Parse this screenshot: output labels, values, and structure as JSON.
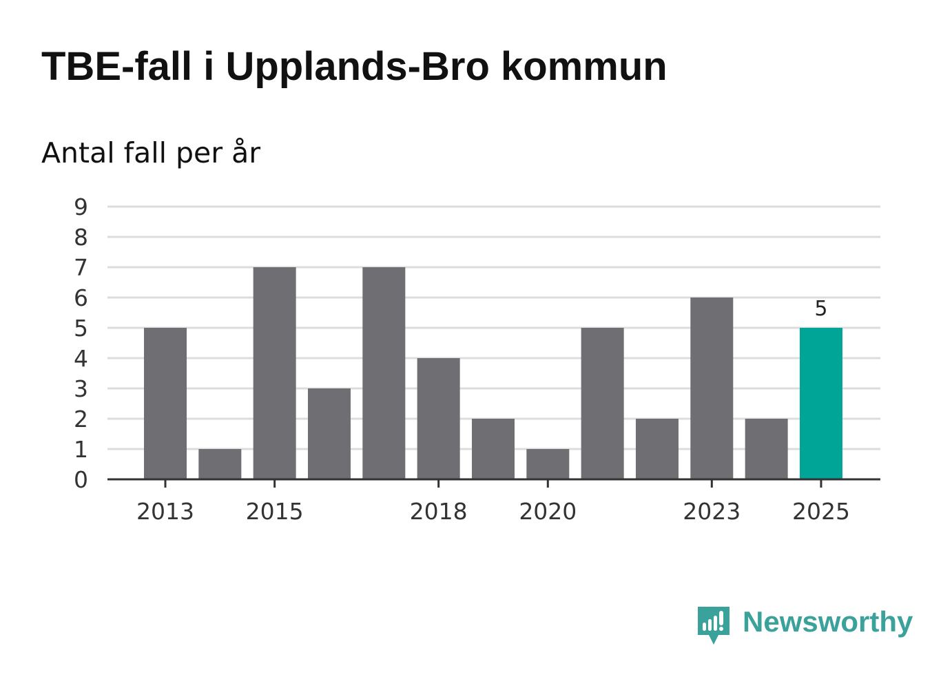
{
  "title": "TBE-fall i Upplands-Bro kommun",
  "subtitle": "Antal fall per år",
  "colors": {
    "bar": "#6f6e73",
    "highlight": "#00a598",
    "grid": "#dcdcdc",
    "axis": "#333333",
    "brand": "#3aa29a"
  },
  "chart_data": {
    "type": "bar",
    "title": "TBE-fall i Upplands-Bro kommun",
    "subtitle": "Antal fall per år",
    "xlabel": "",
    "ylabel": "",
    "categories": [
      "2013",
      "2014",
      "2015",
      "2016",
      "2017",
      "2018",
      "2019",
      "2020",
      "2021",
      "2022",
      "2023",
      "2024",
      "2025"
    ],
    "values": [
      5,
      1,
      7,
      3,
      7,
      4,
      2,
      1,
      5,
      2,
      6,
      2,
      5
    ],
    "ylim": [
      0,
      9
    ],
    "y_ticks": [
      "0",
      "1",
      "2",
      "3",
      "4",
      "5",
      "6",
      "7",
      "8",
      "9"
    ],
    "x_tick_labels": [
      "2013",
      "2015",
      "2018",
      "2020",
      "2023",
      "2025"
    ],
    "highlight_category": "2025",
    "data_labels": [
      {
        "category": "2025",
        "text": "5"
      }
    ],
    "grid": true
  },
  "branding": {
    "name": "Newsworthy",
    "icon": "newsworthy-logo-icon"
  }
}
